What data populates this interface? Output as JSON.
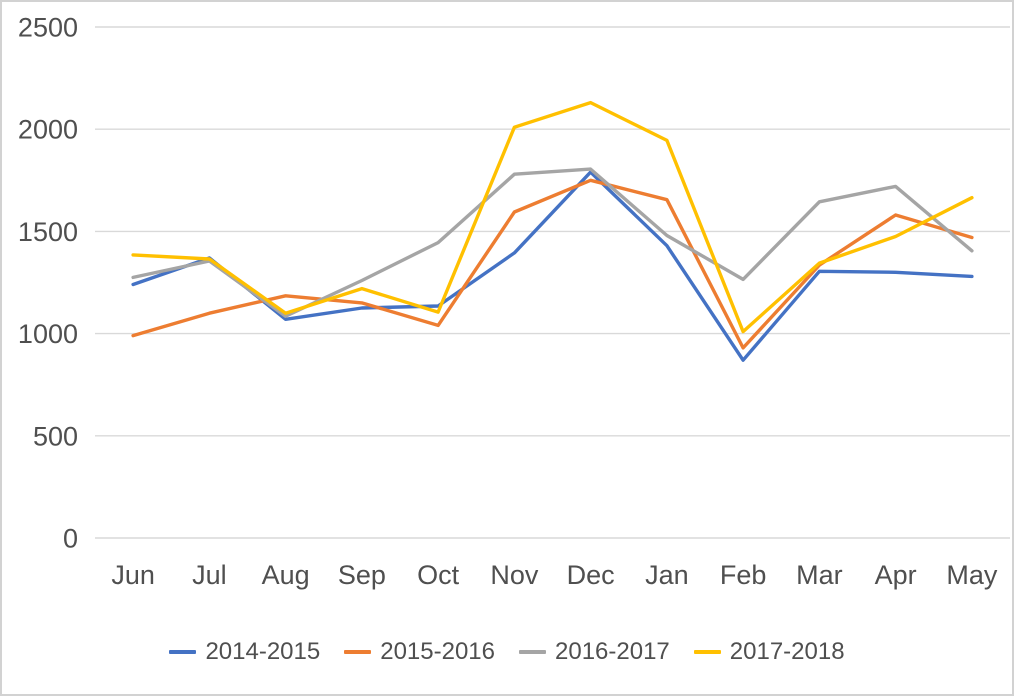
{
  "chart_data": {
    "type": "line",
    "title": "",
    "xlabel": "",
    "ylabel": "",
    "categories": [
      "Jun",
      "Jul",
      "Aug",
      "Sep",
      "Oct",
      "Nov",
      "Dec",
      "Jan",
      "Feb",
      "Mar",
      "Apr",
      "May"
    ],
    "series": [
      {
        "name": "2014-2015",
        "color": "#4472C4",
        "values": [
          1240,
          1370,
          1070,
          1125,
          1135,
          1395,
          1790,
          1430,
          870,
          1305,
          1300,
          1280
        ]
      },
      {
        "name": "2015-2016",
        "color": "#ED7D31",
        "values": [
          990,
          1100,
          1185,
          1150,
          1040,
          1595,
          1750,
          1655,
          930,
          1335,
          1580,
          1470
        ]
      },
      {
        "name": "2016-2017",
        "color": "#A5A5A5",
        "values": [
          1275,
          1355,
          1085,
          1260,
          1445,
          1780,
          1805,
          1480,
          1265,
          1645,
          1720,
          1405
        ]
      },
      {
        "name": "2017-2018",
        "color": "#FFC000",
        "values": [
          1385,
          1365,
          1100,
          1220,
          1105,
          2010,
          2130,
          1945,
          1010,
          1345,
          1475,
          1665
        ]
      }
    ],
    "ylim": [
      0,
      2500
    ],
    "ytick_interval": 500,
    "yticks": [
      "0",
      "500",
      "1000",
      "1500",
      "2000",
      "2500"
    ],
    "grid": true,
    "legend_position": "bottom"
  },
  "styles": {
    "grid_color": "#d9d9d9",
    "tick_color": "#4f4f4f",
    "border_color": "#d2d2d2",
    "background": "#ffffff"
  }
}
